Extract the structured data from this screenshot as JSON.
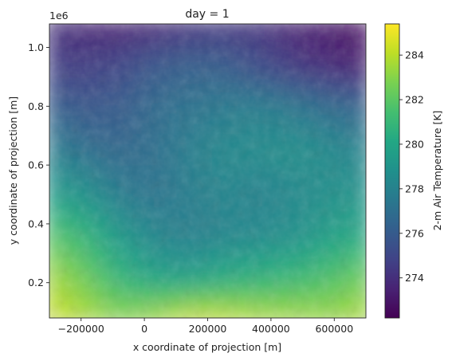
{
  "chart_data": {
    "type": "heatmap",
    "title": "day = 1",
    "xlabel": "x coordinate of projection [m]",
    "ylabel": "y coordinate of projection [m]",
    "y_offset_label": "1e6",
    "xlim": [
      -300000,
      700000
    ],
    "ylim": [
      80000,
      1080000
    ],
    "x_ticks": [
      {
        "value": -200000,
        "label": "−200000"
      },
      {
        "value": 0,
        "label": "0"
      },
      {
        "value": 200000,
        "label": "200000"
      },
      {
        "value": 400000,
        "label": "400000"
      },
      {
        "value": 600000,
        "label": "600000"
      }
    ],
    "y_ticks": [
      {
        "value": 200000,
        "label": "0.2"
      },
      {
        "value": 400000,
        "label": "0.4"
      },
      {
        "value": 600000,
        "label": "0.6"
      },
      {
        "value": 800000,
        "label": "0.8"
      },
      {
        "value": 1000000,
        "label": "1.0"
      }
    ],
    "colorbar": {
      "label": "2-m Air Temperature [K]",
      "min": 272.2,
      "max": 285.4,
      "colormap": "viridis",
      "ticks": [
        {
          "value": 274,
          "label": "274"
        },
        {
          "value": 276,
          "label": "276"
        },
        {
          "value": 278,
          "label": "278"
        },
        {
          "value": 280,
          "label": "280"
        },
        {
          "value": 282,
          "label": "282"
        },
        {
          "value": 284,
          "label": "284"
        }
      ]
    },
    "field_description": "Temperature grid (K) sampled on a 10 x 8 grid, rows from top (y=1.08e6) to bottom (y=0.08e6), columns from x=-3e5 to x=7e5",
    "grid_values": [
      [
        274.0,
        273.6,
        273.4,
        273.6,
        274.0,
        274.2,
        274.0,
        273.4,
        273.0,
        272.6
      ],
      [
        274.6,
        274.6,
        275.0,
        275.8,
        276.2,
        276.0,
        275.2,
        274.4,
        273.8,
        273.4
      ],
      [
        276.2,
        275.8,
        276.0,
        276.8,
        277.2,
        277.6,
        277.8,
        277.4,
        276.8,
        276.4
      ],
      [
        277.8,
        277.0,
        276.6,
        277.0,
        277.8,
        278.4,
        278.6,
        278.8,
        278.4,
        278.0
      ],
      [
        279.4,
        278.8,
        277.6,
        277.2,
        277.8,
        278.2,
        278.0,
        278.4,
        278.8,
        279.0
      ],
      [
        281.8,
        280.8,
        279.2,
        278.2,
        277.8,
        278.2,
        278.4,
        278.8,
        279.6,
        280.2
      ],
      [
        283.6,
        282.4,
        280.8,
        279.8,
        279.6,
        280.2,
        280.6,
        281.0,
        281.6,
        282.4
      ],
      [
        284.4,
        283.8,
        283.0,
        283.6,
        284.4,
        284.2,
        283.8,
        283.6,
        283.4,
        283.8
      ]
    ]
  }
}
